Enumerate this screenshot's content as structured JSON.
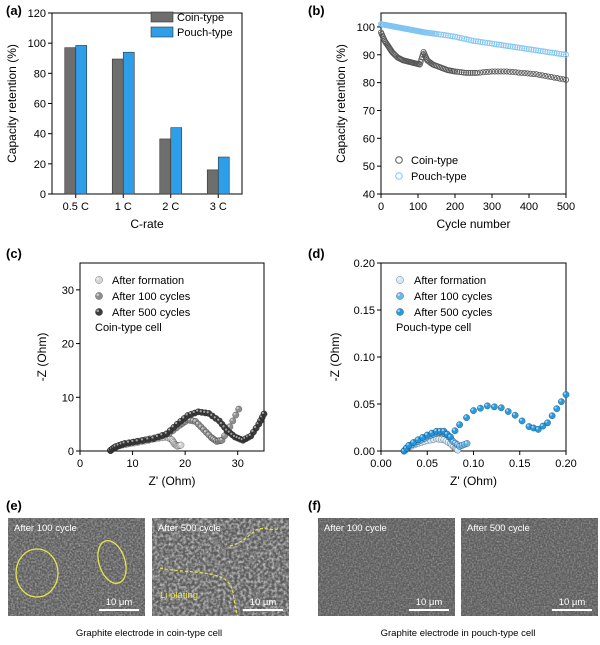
{
  "panel_a": {
    "label": "(a)",
    "ylabel": "Capacity retention (%)",
    "xlabel": "C-rate",
    "legend": [
      {
        "name": "Coin-type",
        "color": "#6e6e6e"
      },
      {
        "name": "Pouch-type",
        "color": "#2e9ee8"
      }
    ]
  },
  "panel_b": {
    "label": "(b)",
    "ylabel": "Capacity retention (%)",
    "xlabel": "Cycle number",
    "legend": [
      {
        "name": "Coin-type",
        "color": "#555555"
      },
      {
        "name": "Pouch-type",
        "color": "#7fc4f2"
      }
    ]
  },
  "panel_c": {
    "label": "(c)",
    "ylabel": "-Z (Ohm)",
    "xlabel": "Z' (Ohm)",
    "note": "Coin-type cell",
    "legend": [
      {
        "name": "After formation",
        "color": "#d4d4d4"
      },
      {
        "name": "After 100 cycles",
        "color": "#8a8a8a"
      },
      {
        "name": "After 500 cycles",
        "color": "#333333"
      }
    ]
  },
  "panel_d": {
    "label": "(d)",
    "ylabel": "-Z (Ohm)",
    "xlabel": "Z' (Ohm)",
    "note": "Pouch-type cell",
    "legend": [
      {
        "name": "After formation",
        "color": "#cfe8fb"
      },
      {
        "name": "After 100 cycles",
        "color": "#5fb5ee"
      },
      {
        "name": "After 500 cycles",
        "color": "#1a96e3"
      }
    ]
  },
  "panel_e": {
    "label": "(e)",
    "images": [
      {
        "title": "After 100 cycle",
        "scale": "10 μm"
      },
      {
        "title": "After 500 cycle",
        "scale": "10 μm",
        "annotation": "Li plating"
      }
    ],
    "caption": "Graphite electrode in coin-type cell"
  },
  "panel_f": {
    "label": "(f)",
    "images": [
      {
        "title": "After 100 cycle",
        "scale": "10 μm"
      },
      {
        "title": "After 500 cycle",
        "scale": "10 μm"
      }
    ],
    "caption": "Graphite electrode in pouch-type cell"
  },
  "chart_data": [
    {
      "type": "bar",
      "categories": [
        "0.5 C",
        "1 C",
        "2 C",
        "3 C"
      ],
      "series": [
        {
          "name": "Coin-type",
          "values": [
            97,
            89.5,
            36.5,
            16
          ]
        },
        {
          "name": "Pouch-type",
          "values": [
            98.5,
            94,
            44,
            24.5
          ]
        }
      ],
      "xlabel": "C-rate",
      "ylabel": "Capacity retention (%)",
      "ylim": [
        0,
        120
      ],
      "yticks": [
        0,
        20,
        40,
        60,
        80,
        100,
        120
      ]
    },
    {
      "type": "scatter",
      "series": [
        {
          "name": "Coin-type",
          "x": [
            0,
            10,
            20,
            30,
            45,
            60,
            75,
            90,
            105,
            115,
            125,
            140,
            160,
            180,
            200,
            230,
            260,
            300,
            340,
            380,
            420,
            460,
            500
          ],
          "y": [
            98,
            95,
            93,
            91,
            89,
            88,
            87.5,
            87,
            86.5,
            91,
            88,
            86.5,
            85.5,
            84.5,
            84,
            83.5,
            83.5,
            84,
            84,
            83.5,
            83,
            82,
            81
          ]
        },
        {
          "name": "Pouch-type",
          "x": [
            0,
            20,
            40,
            60,
            80,
            100,
            120,
            150,
            200,
            250,
            300,
            350,
            400,
            450,
            500
          ],
          "y": [
            101,
            100.5,
            100,
            99.5,
            99,
            98.5,
            98,
            97.5,
            96.5,
            95,
            94,
            93,
            92,
            91,
            90
          ]
        }
      ],
      "xlabel": "Cycle number",
      "ylabel": "Capacity retention (%)",
      "xlim": [
        0,
        500
      ],
      "ylim": [
        40,
        105
      ],
      "xticks": [
        0,
        100,
        200,
        300,
        400,
        500
      ],
      "yticks": [
        40,
        50,
        60,
        70,
        80,
        90,
        100
      ]
    },
    {
      "type": "scatter",
      "series": [
        {
          "name": "After formation",
          "x": [
            5.8,
            6.5,
            7.5,
            9,
            11,
            13,
            15,
            16.5,
            17.5,
            18,
            18.5,
            19.2
          ],
          "y": [
            0.1,
            0.6,
            1.0,
            1.3,
            1.6,
            2.0,
            2.4,
            2.6,
            2.1,
            1.3,
            0.9,
            1.1
          ]
        },
        {
          "name": "After 100 cycles",
          "x": [
            5.8,
            6.6,
            8,
            10,
            12.5,
            15,
            17,
            19,
            20.5,
            22,
            23.5,
            25,
            26,
            27,
            28.5,
            30.2
          ],
          "y": [
            0.1,
            0.7,
            1.2,
            1.6,
            2.1,
            2.6,
            3.3,
            4.8,
            5.8,
            5.5,
            4.0,
            2.5,
            1.8,
            2.0,
            4.5,
            7.8
          ]
        },
        {
          "name": "After 500 cycles",
          "x": [
            5.8,
            6.8,
            8.5,
            11,
            14,
            16.5,
            18.5,
            20.5,
            22.5,
            24.5,
            26.5,
            28,
            29.5,
            31,
            32.5,
            34,
            35
          ],
          "y": [
            0.1,
            0.8,
            1.4,
            1.8,
            2.3,
            3.2,
            5.0,
            6.6,
            7.3,
            7.0,
            5.6,
            3.8,
            2.6,
            2.0,
            2.8,
            5.0,
            6.9
          ]
        }
      ],
      "xlabel": "Z' (Ohm)",
      "ylabel": "-Z (Ohm)",
      "xlim": [
        0,
        35
      ],
      "ylim": [
        0,
        35
      ],
      "xticks": [
        0,
        10,
        20,
        30
      ],
      "yticks": [
        0,
        10,
        20,
        30
      ]
    },
    {
      "type": "scatter",
      "series": [
        {
          "name": "After formation",
          "x": [
            0.025,
            0.03,
            0.04,
            0.05,
            0.06,
            0.068,
            0.075,
            0.08,
            0.083
          ],
          "y": [
            0.0,
            0.004,
            0.008,
            0.011,
            0.013,
            0.012,
            0.008,
            0.003,
            0.001
          ]
        },
        {
          "name": "After 100 cycles",
          "x": [
            0.025,
            0.03,
            0.04,
            0.05,
            0.06,
            0.066,
            0.072,
            0.078,
            0.085,
            0.093
          ],
          "y": [
            0.0,
            0.005,
            0.01,
            0.015,
            0.019,
            0.02,
            0.017,
            0.01,
            0.005,
            0.008
          ]
        },
        {
          "name": "After 500 cycles",
          "x": [
            0.025,
            0.03,
            0.04,
            0.05,
            0.06,
            0.068,
            0.075,
            0.085,
            0.1,
            0.115,
            0.13,
            0.145,
            0.16,
            0.17,
            0.18,
            0.19,
            0.2
          ],
          "y": [
            0.0,
            0.006,
            0.012,
            0.017,
            0.021,
            0.021,
            0.015,
            0.028,
            0.043,
            0.048,
            0.046,
            0.038,
            0.026,
            0.023,
            0.03,
            0.045,
            0.06
          ]
        }
      ],
      "xlabel": "Z' (Ohm)",
      "ylabel": "-Z (Ohm)",
      "xlim": [
        0,
        0.2
      ],
      "ylim": [
        0,
        0.2
      ],
      "xticks": [
        0.0,
        0.05,
        0.1,
        0.15,
        0.2
      ],
      "yticks": [
        0.0,
        0.05,
        0.1,
        0.15,
        0.2
      ]
    }
  ]
}
